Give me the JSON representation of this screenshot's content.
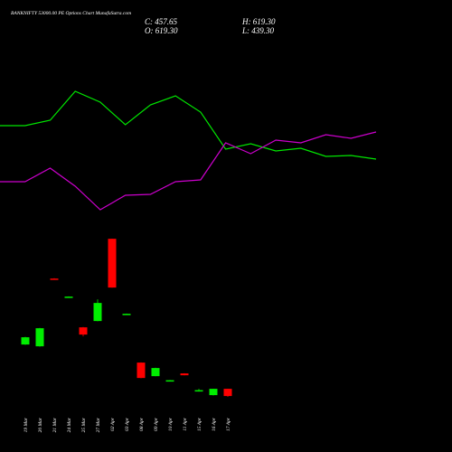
{
  "chart_data": [
    {
      "type": "line",
      "series": [
        {
          "color": "#00e600",
          "values": [
            361,
            361,
            367,
            399,
            387,
            362,
            384,
            394,
            376,
            335,
            341,
            333,
            336,
            327,
            328,
            324
          ]
        },
        {
          "color": "#cc00cc",
          "values": [
            299,
            299,
            314,
            294,
            268,
            284,
            285,
            299,
            301,
            342,
            330,
            345,
            342,
            351,
            347,
            354
          ]
        }
      ]
    },
    {
      "type": "candlestick",
      "title": "BANKNIFTY 53000.00 PE Options Chart MunafaSutra.com",
      "annotations": [
        "C: 457.65",
        "O: 619.30",
        "H: 619.30",
        "L: 439.30"
      ],
      "categories": [
        "19 Mar",
        "20 Mar",
        "21 Mar",
        "24 Mar",
        "25 Mar",
        "27 Mar",
        "02 Apr",
        "03 Apr",
        "08 Apr",
        "09 Apr",
        "10 Apr",
        "11 Apr",
        "15 Apr",
        "16 Apr",
        "17 Apr"
      ],
      "open": [
        1609,
        1569,
        3083,
        2675,
        1993,
        2134,
        3972,
        2286,
        1205,
        902,
        801,
        963,
        569,
        478,
        619.3
      ],
      "high": [
        1780,
        1980,
        3090,
        2685,
        2000,
        2619,
        3975,
        2300,
        1210,
        1090,
        815,
        968,
        619,
        619,
        619.3
      ],
      "low": [
        1600,
        1560,
        3055,
        2670,
        1791,
        2130,
        2880,
        2280,
        855,
        898,
        795,
        918,
        559,
        470,
        439.3
      ],
      "close": [
        1771,
        1973,
        3063,
        2680,
        1831,
        2538,
        2882,
        2296,
        861,
        1084,
        811,
        922,
        589,
        619,
        457.65
      ],
      "up_color": "#00ee00",
      "down_color": "#ff0000"
    }
  ]
}
